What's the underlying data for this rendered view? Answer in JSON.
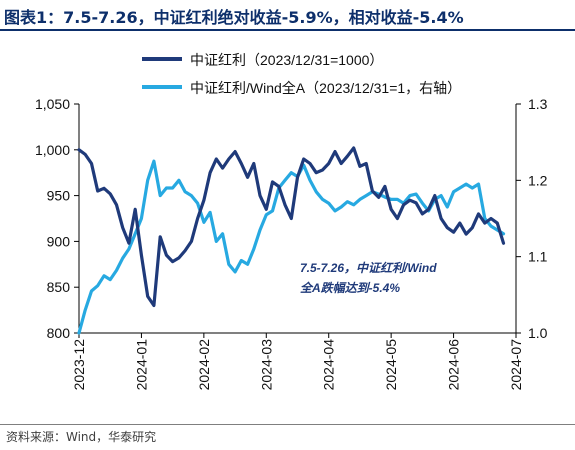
{
  "title": "图表1：7.5-7.26，中证红利绝对收益-5.9%，相对收益-5.4%",
  "source": "资料来源：Wind，华泰研究",
  "colors": {
    "dark": "#1f3a7a",
    "light": "#27a9e1",
    "title": "#0d2f6b",
    "annotation": "#1f3a7a"
  },
  "chart_data": {
    "type": "line",
    "x_ticks": [
      "2023-12",
      "2024-01",
      "2024-02",
      "2024-03",
      "2024-04",
      "2024-05",
      "2024-06",
      "2024-07"
    ],
    "x_range": [
      0,
      7
    ],
    "y_left": {
      "min": 800,
      "max": 1050,
      "ticks": [
        "800",
        "850",
        "900",
        "950",
        "1,000",
        "1,050"
      ]
    },
    "y_right": {
      "min": 1.0,
      "max": 1.3,
      "ticks": [
        "1.0",
        "1.1",
        "1.2",
        "1.3"
      ]
    },
    "legend_position": "top",
    "annotation": {
      "line1": "7.5-7.26，中证红利/Wind",
      "line2": "全A跌幅达到-5.4%"
    },
    "series": [
      {
        "name": "中证红利（2023/12/31=1000）",
        "axis": "left",
        "color": "#1f3a7a",
        "x": [
          0,
          0.1,
          0.2,
          0.3,
          0.4,
          0.5,
          0.6,
          0.7,
          0.8,
          0.9,
          1.0,
          1.1,
          1.2,
          1.3,
          1.4,
          1.5,
          1.6,
          1.7,
          1.8,
          1.9,
          2.0,
          2.1,
          2.2,
          2.3,
          2.4,
          2.5,
          2.6,
          2.7,
          2.8,
          2.9,
          3.0,
          3.1,
          3.2,
          3.3,
          3.4,
          3.5,
          3.6,
          3.7,
          3.8,
          3.9,
          4.0,
          4.1,
          4.2,
          4.3,
          4.4,
          4.5,
          4.6,
          4.7,
          4.8,
          4.9,
          5.0,
          5.1,
          5.2,
          5.3,
          5.4,
          5.5,
          5.6,
          5.7,
          5.8,
          5.9,
          6.0,
          6.1,
          6.2,
          6.3,
          6.4,
          6.5,
          6.6,
          6.7,
          6.8
        ],
        "values": [
          1000,
          995,
          985,
          955,
          958,
          952,
          940,
          915,
          898,
          935,
          885,
          840,
          830,
          905,
          885,
          878,
          882,
          890,
          900,
          925,
          945,
          975,
          990,
          980,
          990,
          998,
          985,
          970,
          985,
          950,
          935,
          965,
          960,
          940,
          925,
          970,
          990,
          985,
          975,
          978,
          985,
          998,
          985,
          993,
          1002,
          982,
          985,
          955,
          948,
          960,
          935,
          925,
          940,
          945,
          942,
          930,
          935,
          950,
          925,
          915,
          910,
          920,
          908,
          915,
          930,
          920,
          925,
          920,
          898
        ]
      },
      {
        "name": "中证红利/Wind全A（2023/12/31=1，右轴）",
        "axis": "right",
        "color": "#27a9e1",
        "x": [
          0,
          0.1,
          0.2,
          0.3,
          0.4,
          0.5,
          0.6,
          0.7,
          0.8,
          0.9,
          1.0,
          1.1,
          1.2,
          1.3,
          1.4,
          1.5,
          1.6,
          1.7,
          1.8,
          1.9,
          2.0,
          2.1,
          2.2,
          2.3,
          2.4,
          2.5,
          2.6,
          2.7,
          2.8,
          2.9,
          3.0,
          3.1,
          3.2,
          3.3,
          3.4,
          3.5,
          3.6,
          3.7,
          3.8,
          3.9,
          4.0,
          4.1,
          4.2,
          4.3,
          4.4,
          4.5,
          4.6,
          4.7,
          4.8,
          4.9,
          5.0,
          5.1,
          5.2,
          5.3,
          5.4,
          5.5,
          5.6,
          5.7,
          5.8,
          5.9,
          6.0,
          6.1,
          6.2,
          6.3,
          6.4,
          6.5,
          6.6,
          6.7,
          6.8
        ],
        "values": [
          1.0,
          1.03,
          1.055,
          1.062,
          1.075,
          1.07,
          1.082,
          1.098,
          1.11,
          1.13,
          1.15,
          1.2,
          1.225,
          1.18,
          1.19,
          1.19,
          1.2,
          1.185,
          1.18,
          1.17,
          1.145,
          1.158,
          1.12,
          1.13,
          1.09,
          1.08,
          1.095,
          1.09,
          1.11,
          1.135,
          1.155,
          1.16,
          1.19,
          1.2,
          1.21,
          1.205,
          1.22,
          1.2,
          1.185,
          1.175,
          1.17,
          1.16,
          1.165,
          1.172,
          1.168,
          1.175,
          1.18,
          1.185,
          1.182,
          1.178,
          1.175,
          1.175,
          1.17,
          1.18,
          1.182,
          1.17,
          1.16,
          1.175,
          1.18,
          1.165,
          1.185,
          1.19,
          1.195,
          1.19,
          1.195,
          1.15,
          1.14,
          1.135,
          1.13
        ]
      }
    ]
  }
}
